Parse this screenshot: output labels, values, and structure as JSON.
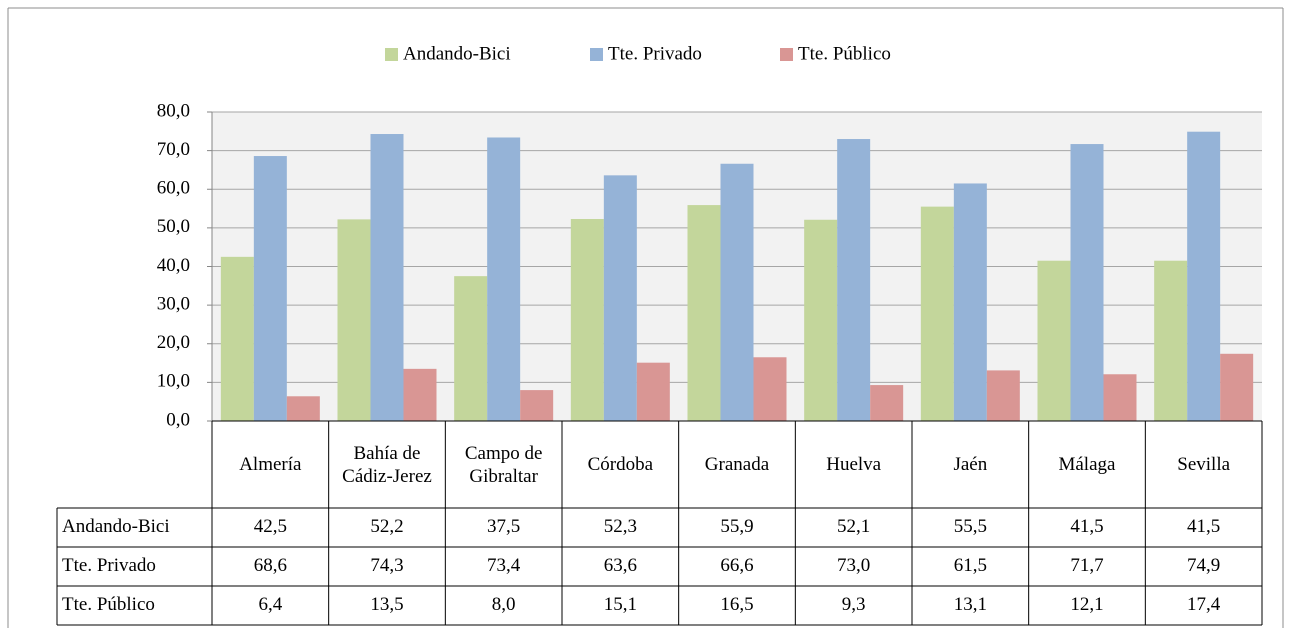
{
  "chart_data": {
    "type": "bar",
    "categories": [
      "Almería",
      "Bahía de Cádiz-Jerez",
      "Campo de Gibraltar",
      "Córdoba",
      "Granada",
      "Huelva",
      "Jaén",
      "Málaga",
      "Sevilla"
    ],
    "series": [
      {
        "name": "Andando-Bici",
        "color": "#c3d69b",
        "values": [
          42.5,
          52.2,
          37.5,
          52.3,
          55.9,
          52.1,
          55.5,
          41.5,
          41.5
        ],
        "value_labels": [
          "42,5",
          "52,2",
          "37,5",
          "52,3",
          "55,9",
          "52,1",
          "55,5",
          "41,5",
          "41,5"
        ]
      },
      {
        "name": "Tte. Privado",
        "color": "#95b3d7",
        "values": [
          68.6,
          74.3,
          73.4,
          63.6,
          66.6,
          73.0,
          61.5,
          71.7,
          74.9
        ],
        "value_labels": [
          "68,6",
          "74,3",
          "73,4",
          "63,6",
          "66,6",
          "73,0",
          "61,5",
          "71,7",
          "74,9"
        ]
      },
      {
        "name": "Tte. Público",
        "color": "#d99694",
        "values": [
          6.4,
          13.5,
          8.0,
          15.1,
          16.5,
          9.3,
          13.1,
          12.1,
          17.4
        ],
        "value_labels": [
          "6,4",
          "13,5",
          "8,0",
          "15,1",
          "16,5",
          "9,3",
          "13,1",
          "12,1",
          "17,4"
        ]
      }
    ],
    "ylim": [
      0,
      80
    ],
    "yticks": [
      {
        "value": 0,
        "label": "0,0"
      },
      {
        "value": 10,
        "label": "10,0"
      },
      {
        "value": 20,
        "label": "20,0"
      },
      {
        "value": 30,
        "label": "30,0"
      },
      {
        "value": 40,
        "label": "40,0"
      },
      {
        "value": 50,
        "label": "50,0"
      },
      {
        "value": 60,
        "label": "60,0"
      },
      {
        "value": 70,
        "label": "70,0"
      },
      {
        "value": 80,
        "label": "80,0"
      }
    ],
    "grid": true,
    "legend": "top"
  }
}
